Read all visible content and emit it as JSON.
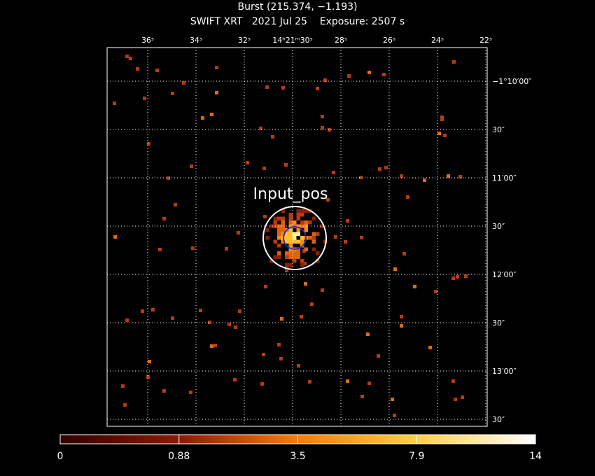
{
  "header": {
    "title": "Burst (215.374, −1.193)",
    "subtitle": "SWIFT XRT   2021 Jul 25    Exposure: 2507 s"
  },
  "image": {
    "ra_labels": [
      "36ˢ",
      "34ˢ",
      "32ˢ",
      "14ʰ21ᵐ30ˢ",
      "28ˢ",
      "26ˢ",
      "24ˢ",
      "22ˢ"
    ],
    "dec_labels": [
      "−1°10′00″",
      "30″",
      "11′00″",
      "30″",
      "12′00″",
      "30″",
      "13′00″",
      "30″"
    ],
    "source_label": "Input_pos"
  },
  "colorbar": {
    "labels": [
      "0",
      "0.88",
      "3.5",
      "7.9",
      "14"
    ]
  }
}
